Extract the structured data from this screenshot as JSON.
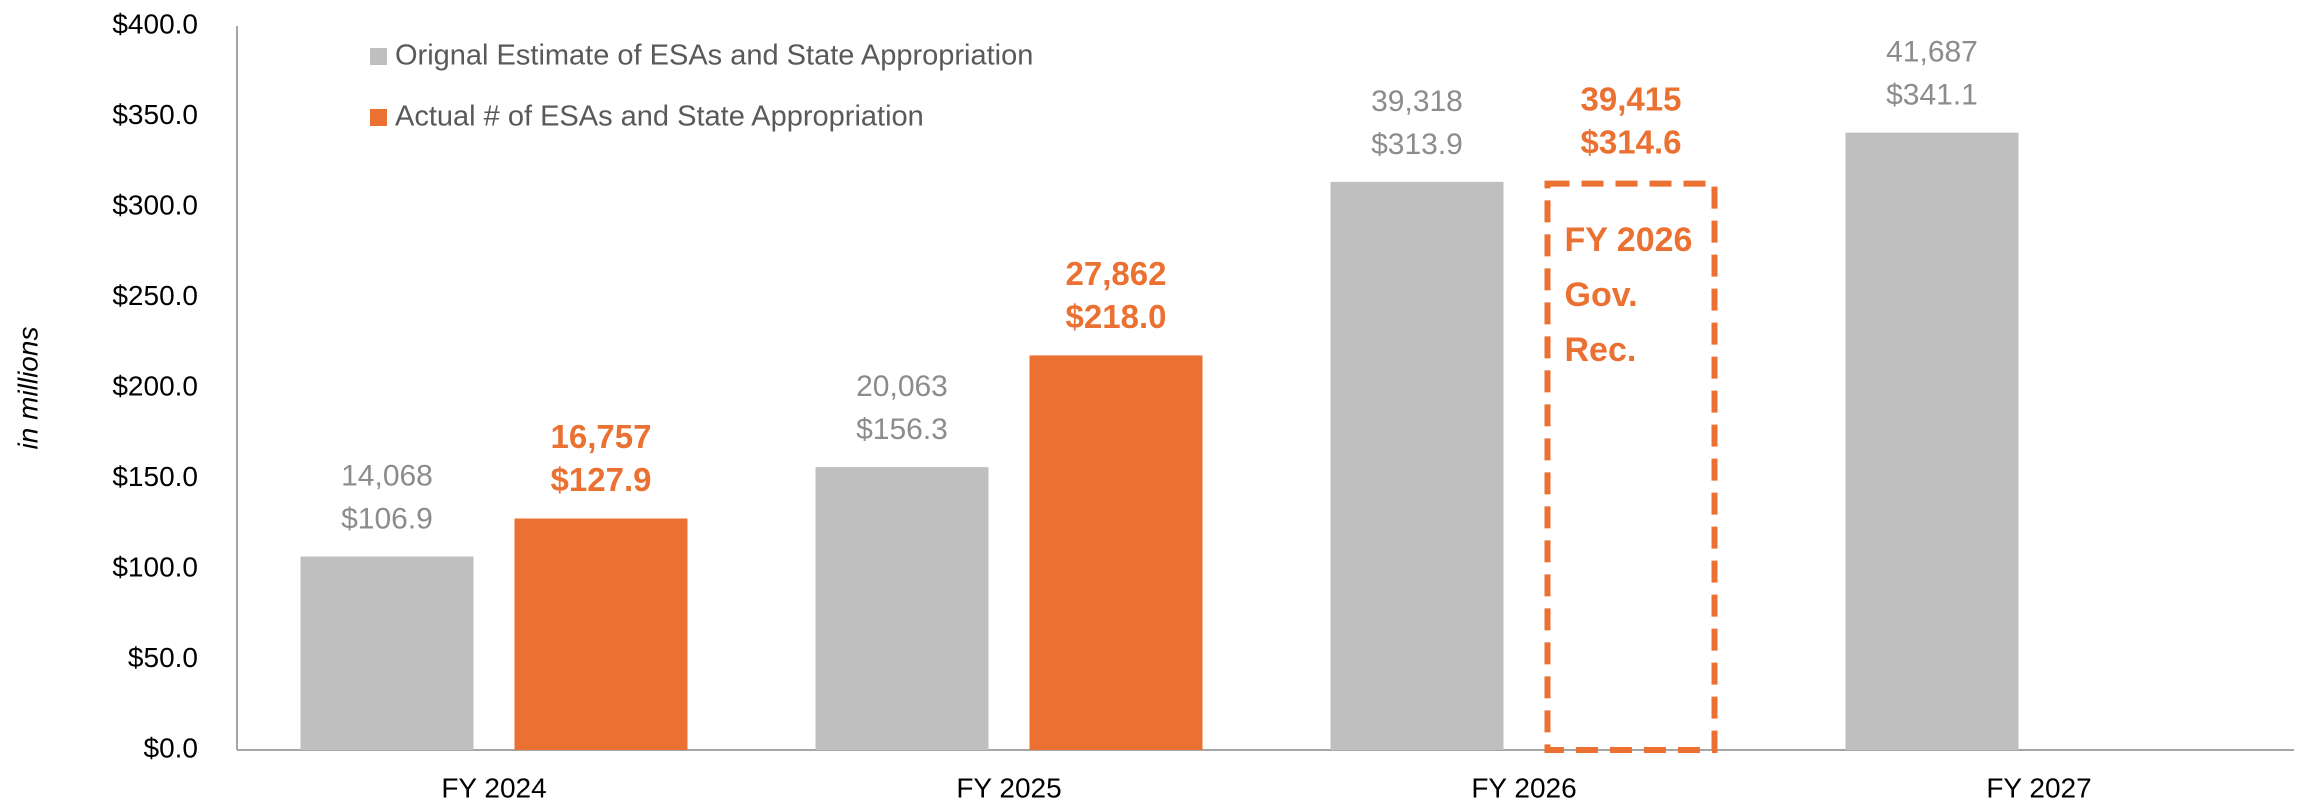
{
  "chart_data": {
    "type": "bar",
    "y_label": "in millions",
    "categories": [
      "FY 2024",
      "FY 2025",
      "FY 2026",
      "FY 2027"
    ],
    "series": [
      {
        "name": "Orignal Estimate of ESAs and State Appropriation",
        "color": "#bfbfbf",
        "values": [
          106.9,
          156.3,
          313.9,
          341.1
        ],
        "value_labels": [
          "$106.9",
          "$156.3",
          "$313.9",
          "$341.1"
        ],
        "counts": [
          14068,
          20063,
          39318,
          41687
        ],
        "count_labels": [
          "14,068",
          "20,063",
          "39,318",
          "41,687"
        ],
        "styles": [
          "solid",
          "solid",
          "solid",
          "solid"
        ]
      },
      {
        "name": "Actual # of ESAs and State Appropriation",
        "color": "#ea7131",
        "values": [
          127.9,
          218.0,
          314.6,
          null
        ],
        "value_labels": [
          "$127.9",
          "$218.0",
          "$314.6",
          null
        ],
        "counts": [
          16757,
          27862,
          39415,
          null
        ],
        "count_labels": [
          "16,757",
          "27,862",
          "39,415",
          null
        ],
        "styles": [
          "solid",
          "solid",
          "dashed",
          null
        ]
      }
    ],
    "annotation": [
      "FY 2026",
      "Gov.",
      "Rec."
    ],
    "ylim": [
      0,
      400
    ],
    "yticks": [
      {
        "value": 0,
        "label": "$0.0"
      },
      {
        "value": 50,
        "label": "$50.0"
      },
      {
        "value": 100,
        "label": "$100.0"
      },
      {
        "value": 150,
        "label": "$150.0"
      },
      {
        "value": 200,
        "label": "$200.0"
      },
      {
        "value": 250,
        "label": "$250.0"
      },
      {
        "value": 300,
        "label": "$300.0"
      },
      {
        "value": 350,
        "label": "$350.0"
      },
      {
        "value": 400,
        "label": "$400.0"
      }
    ],
    "grid": false,
    "legend": "upper left"
  }
}
